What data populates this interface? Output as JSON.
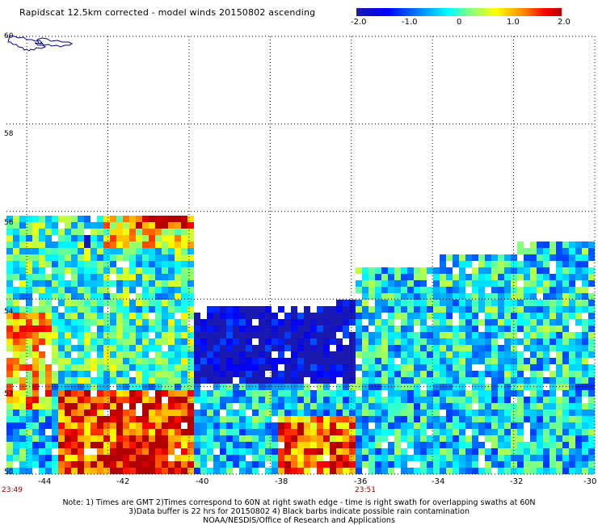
{
  "title": "Rapidscat 12.5km corrected - model winds 20150802 ascending",
  "colorbar": {
    "labels": [
      "-2.0",
      "-1.0",
      "0",
      "1.0",
      "2.0"
    ],
    "values": [
      -2.0,
      -1.0,
      0,
      1.0,
      2.0
    ]
  },
  "map": {
    "lon_range": [
      -44.5,
      -30
    ],
    "lat_range": [
      50,
      60
    ],
    "x_ticks": [
      "-44",
      "-42",
      "-40",
      "-38",
      "-36",
      "-34",
      "-32",
      "-30"
    ],
    "x_tick_values": [
      -44,
      -42,
      -40,
      -38,
      -36,
      -34,
      -32,
      -30
    ],
    "y_ticks": [
      "60",
      "58",
      "56",
      "54",
      "52",
      "50"
    ],
    "y_tick_values": [
      60,
      58,
      56,
      54,
      52,
      50
    ],
    "grid": "dotted",
    "coastline": "Greenland tip (top-left)"
  },
  "times": [
    {
      "label": "23:49",
      "lon": -44.5
    },
    {
      "label": "23:51",
      "lon": -36.0
    }
  ],
  "notes": [
    "Note: 1) Times are GMT 2)Times correspond to 60N at right swath edge - time is right swath for overlapping swaths at 60N",
    "3)Data buffer is 22 hrs for 20150802 4) Black barbs indicate possible rain contamination",
    "NOAA/NESDIS/Office of Research and Applications"
  ],
  "colors": {
    "time_label": "#8b0000"
  }
}
